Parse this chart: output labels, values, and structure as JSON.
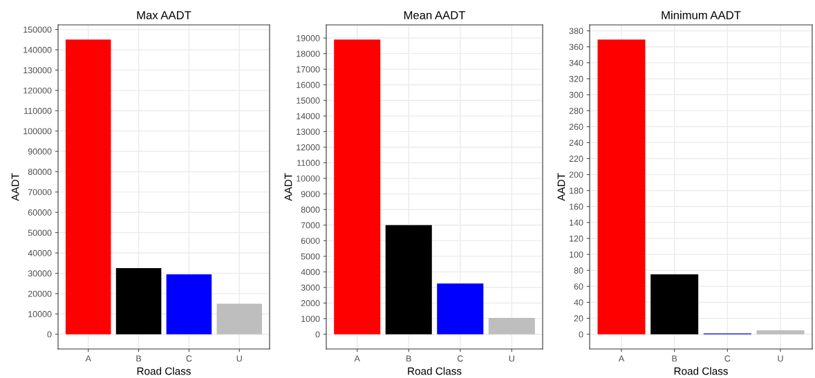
{
  "chart_data": [
    {
      "type": "bar",
      "title": "Max AADT",
      "xlabel": "Road Class",
      "ylabel": "AADT",
      "categories": [
        "A",
        "B",
        "C",
        "U"
      ],
      "values": [
        145000,
        32500,
        29500,
        15000
      ],
      "colors": [
        "#ff0000",
        "#000000",
        "#0000ff",
        "#bebebe"
      ],
      "ylim": [
        -7250,
        152250
      ],
      "yticks": [
        0,
        10000,
        20000,
        30000,
        40000,
        50000,
        60000,
        70000,
        80000,
        90000,
        100000,
        110000,
        120000,
        130000,
        140000,
        150000
      ],
      "grid": true
    },
    {
      "type": "bar",
      "title": "Mean AADT",
      "xlabel": "Road Class",
      "ylabel": "AADT",
      "categories": [
        "A",
        "B",
        "C",
        "U"
      ],
      "values": [
        18900,
        7000,
        3250,
        1050
      ],
      "colors": [
        "#ff0000",
        "#000000",
        "#0000ff",
        "#bebebe"
      ],
      "ylim": [
        -945,
        19845
      ],
      "yticks": [
        0,
        1000,
        2000,
        3000,
        4000,
        5000,
        6000,
        7000,
        8000,
        9000,
        10000,
        11000,
        12000,
        13000,
        14000,
        15000,
        16000,
        17000,
        18000,
        19000
      ],
      "grid": true
    },
    {
      "type": "bar",
      "title": "Minimum AADT",
      "xlabel": "Road Class",
      "ylabel": "AADT",
      "categories": [
        "A",
        "B",
        "C",
        "U"
      ],
      "values": [
        369,
        75,
        1,
        5
      ],
      "colors": [
        "#ff0000",
        "#000000",
        "#0000ff",
        "#bebebe"
      ],
      "ylim": [
        -18.45,
        387.45
      ],
      "yticks": [
        0,
        20,
        40,
        60,
        80,
        100,
        120,
        140,
        160,
        180,
        200,
        220,
        240,
        260,
        280,
        300,
        320,
        340,
        360,
        380
      ],
      "grid": true
    }
  ]
}
